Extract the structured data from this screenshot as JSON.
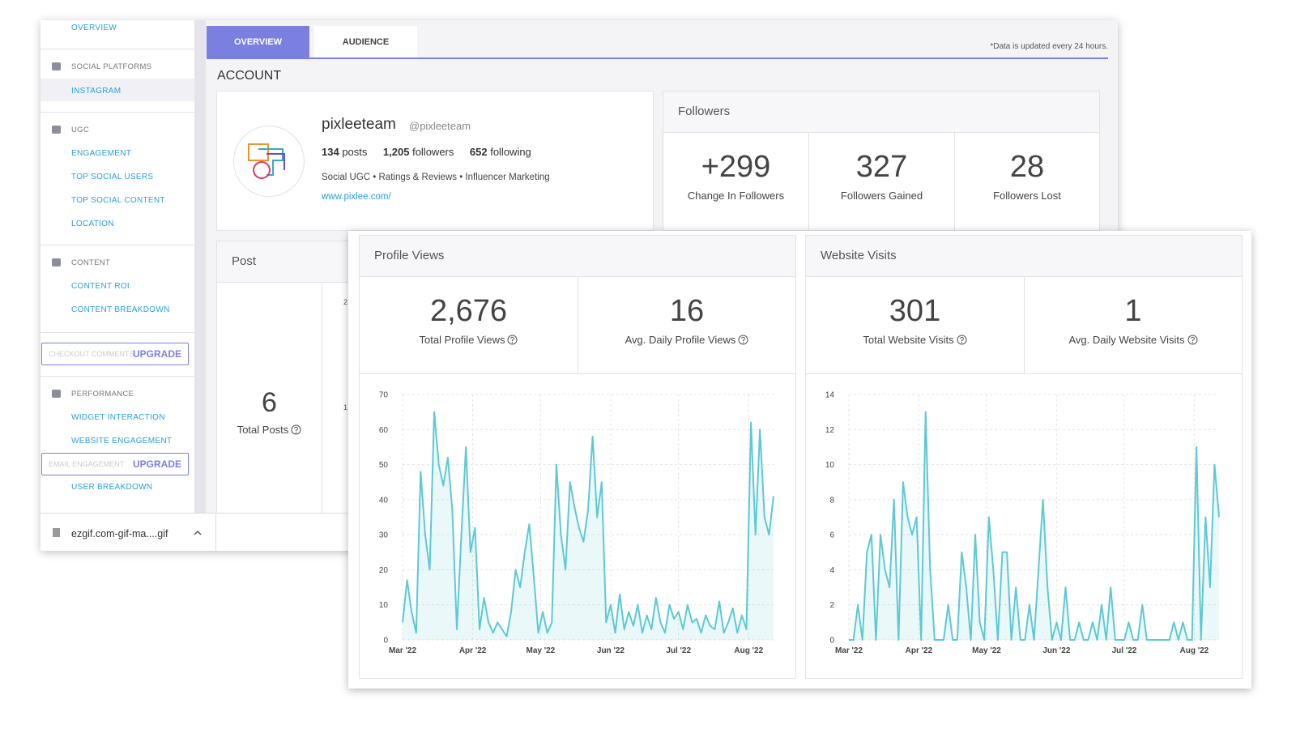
{
  "sidebar": {
    "overview": "OVERVIEW",
    "social_platforms": "SOCIAL PLATFORMS",
    "instagram": "INSTAGRAM",
    "ugc": "UGC",
    "engagement": "ENGAGEMENT",
    "top_social_users": "TOP SOCIAL USERS",
    "top_social_content": "TOP SOCIAL CONTENT",
    "location": "LOCATION",
    "content": "CONTENT",
    "content_roi": "CONTENT ROI",
    "content_breakdown": "CONTENT BREAKDOWN",
    "checkout_comments": "CHECKOUT COMMENTS",
    "upgrade_1": "UPGRADE",
    "performance": "PERFORMANCE",
    "widget_interaction": "WIDGET INTERACTION",
    "website_engagement": "WEBSITE ENGAGEMENT",
    "email_engagement": "EMAIL ENGAGEMENT",
    "upgrade_2": "UPGRADE",
    "user_breakdown": "USER BREAKDOWN"
  },
  "tabs": [
    "OVERVIEW",
    "AUDIENCE"
  ],
  "note": "*Data is updated every 24 hours.",
  "account": {
    "heading": "ACCOUNT",
    "name": "pixleeteam",
    "handle": "@pixleeteam",
    "posts": "134",
    "posts_label": "posts",
    "followers": "1,205",
    "followers_label": "followers",
    "following": "652",
    "following_label": "following",
    "bio": "Social UGC • Ratings & Reviews • Influencer Marketing",
    "url": "www.pixlee.com/"
  },
  "followers": {
    "title": "Followers",
    "stats": [
      {
        "value": "+299",
        "label": "Change In Followers"
      },
      {
        "value": "327",
        "label": "Followers Gained"
      },
      {
        "value": "28",
        "label": "Followers Lost"
      }
    ]
  },
  "post": {
    "title": "Post",
    "value": "6",
    "label": "Total Posts",
    "axis_fragments": [
      "2",
      "1"
    ]
  },
  "download": {
    "file": "ezgif.com-gif-ma....gif"
  },
  "panels": [
    {
      "title": "Profile Views",
      "stats": [
        {
          "value": "2,676",
          "label": "Total Profile Views"
        },
        {
          "value": "16",
          "label": "Avg. Daily Profile Views"
        }
      ]
    },
    {
      "title": "Website Visits",
      "stats": [
        {
          "value": "301",
          "label": "Total Website Visits"
        },
        {
          "value": "1",
          "label": "Avg. Daily Website Visits"
        }
      ]
    }
  ],
  "chart_data": [
    {
      "type": "line",
      "color": "#5cc9d4",
      "grid": true,
      "xlim": [
        0,
        82
      ],
      "ylim": [
        0,
        70
      ],
      "yticks": [
        0,
        10,
        20,
        30,
        40,
        50,
        60,
        70
      ],
      "xticks": [
        {
          "value": 0,
          "label": "Mar '22"
        },
        {
          "value": 15.5,
          "label": "Apr '22"
        },
        {
          "value": 30.5,
          "label": "May '22"
        },
        {
          "value": 46,
          "label": "Jun '22"
        },
        {
          "value": 61,
          "label": "Jul '22"
        },
        {
          "value": 76.5,
          "label": "Aug '22"
        }
      ],
      "values": [
        5,
        17,
        8,
        2,
        48,
        30,
        20,
        65,
        50,
        44,
        52,
        37,
        3,
        30,
        55,
        25,
        32,
        3,
        12,
        5,
        2,
        5,
        3,
        1,
        8,
        20,
        15,
        25,
        33,
        18,
        2,
        8,
        2,
        5,
        50,
        30,
        20,
        45,
        38,
        32,
        28,
        37,
        58,
        35,
        45,
        5,
        10,
        2,
        13,
        3,
        8,
        4,
        10,
        2,
        7,
        3,
        12,
        5,
        2,
        10,
        6,
        8,
        3,
        10,
        5,
        6,
        2,
        7,
        4,
        3,
        11,
        2,
        5,
        9,
        2,
        7,
        3,
        62,
        30,
        60,
        35,
        30,
        41
      ]
    },
    {
      "type": "line",
      "color": "#5cc9d4",
      "grid": true,
      "xlim": [
        0,
        82
      ],
      "ylim": [
        0,
        14
      ],
      "yticks": [
        0,
        2,
        4,
        6,
        8,
        10,
        12,
        14
      ],
      "xticks": [
        {
          "value": 0,
          "label": "Mar '22"
        },
        {
          "value": 15.5,
          "label": "Apr '22"
        },
        {
          "value": 30.5,
          "label": "May '22"
        },
        {
          "value": 46,
          "label": "Jun '22"
        },
        {
          "value": 61,
          "label": "Jul '22"
        },
        {
          "value": 76.5,
          "label": "Aug '22"
        }
      ],
      "values": [
        0,
        0,
        2,
        0,
        5,
        6,
        0,
        6,
        4,
        3,
        8,
        0,
        9,
        7,
        6,
        7,
        0,
        13,
        4,
        0,
        0,
        0,
        2,
        0,
        0,
        5,
        3,
        0,
        6,
        1,
        0,
        7,
        4,
        0,
        5,
        5,
        0,
        3,
        0,
        0,
        2,
        0,
        4,
        8,
        3,
        0,
        1,
        0,
        3,
        0,
        0,
        1,
        0,
        0,
        1,
        0,
        2,
        0,
        3,
        0,
        0,
        0,
        1,
        0,
        0,
        2,
        0,
        0,
        0,
        0,
        0,
        0,
        1,
        0,
        1,
        0,
        0,
        11,
        0,
        7,
        3,
        10,
        7
      ]
    }
  ]
}
